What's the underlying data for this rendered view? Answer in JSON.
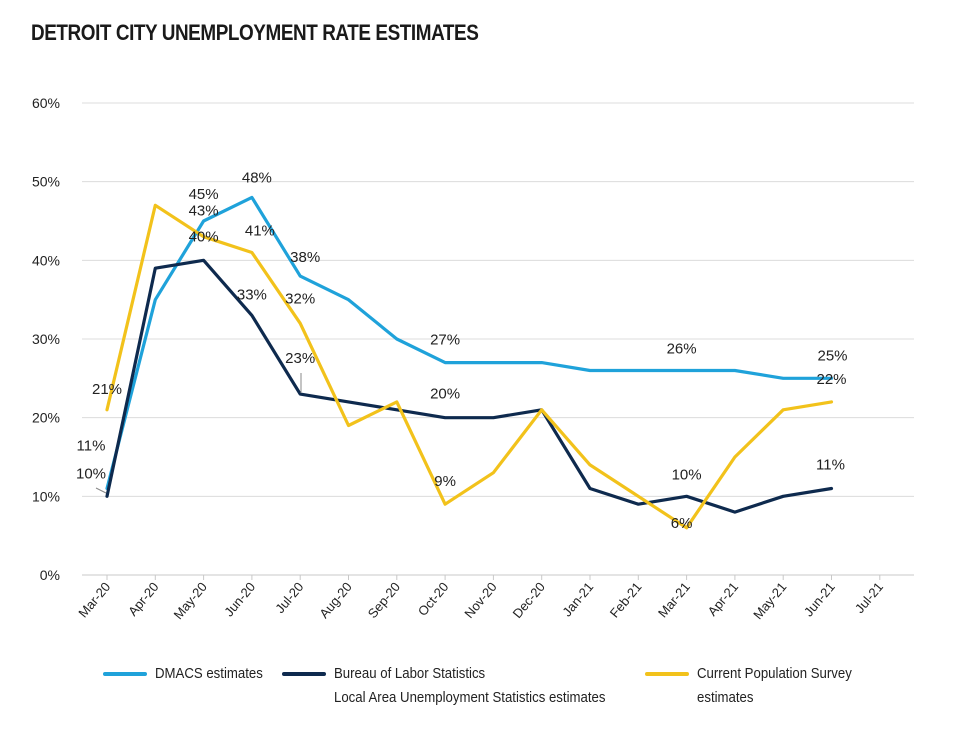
{
  "chart_data": {
    "type": "line",
    "title": "DETROIT CITY UNEMPLOYMENT RATE ESTIMATES",
    "xlabel": "",
    "ylabel": "",
    "ylim": [
      0,
      60
    ],
    "yticks": [
      0,
      10,
      20,
      30,
      40,
      50,
      60
    ],
    "ytick_labels": [
      "0%",
      "10%",
      "20%",
      "30%",
      "40%",
      "50%",
      "60%"
    ],
    "grid": true,
    "legend_position": "bottom",
    "categories": [
      "Mar-20",
      "Apr-20",
      "May-20",
      "Jun-20",
      "Jul-20",
      "Aug-20",
      "Sep-20",
      "Oct-20",
      "Nov-20",
      "Dec-20",
      "Jan-21",
      "Feb-21",
      "Mar-21",
      "Apr-21",
      "May-21",
      "Jun-21",
      "Jul-21"
    ],
    "series": [
      {
        "name": "DMACS estimates",
        "color": "#1FA2DA",
        "values": [
          11,
          35,
          45,
          48,
          38,
          35,
          30,
          27,
          27,
          27,
          26,
          26,
          26,
          26,
          25,
          25,
          null
        ],
        "labels": {
          "0": "11%",
          "2": "45%",
          "3": "48%",
          "4": "38%",
          "7": "27%",
          "12": "26%",
          "15": "25%"
        }
      },
      {
        "name": "Bureau of Labor Statistics Local Area Unemployment Statistics estimates",
        "legend_lines": [
          "Bureau of Labor Statistics",
          "Local Area Unemployment Statistics estimates"
        ],
        "color": "#0E2A4E",
        "values": [
          10,
          39,
          40,
          33,
          23,
          22,
          21,
          20,
          20,
          21,
          11,
          9,
          10,
          8,
          10,
          11,
          null
        ],
        "labels": {
          "0": "10%",
          "2": "40%",
          "3": "33%",
          "4": "23%",
          "7": "20%",
          "12": "10%",
          "15": "11%"
        }
      },
      {
        "name": "Current Population Survey estimates",
        "legend_lines": [
          "Current Population Survey",
          "estimates"
        ],
        "color": "#F2C21B",
        "values": [
          21,
          47,
          43,
          41,
          32,
          19,
          22,
          9,
          13,
          21,
          14,
          10,
          6,
          15,
          21,
          22,
          null
        ],
        "labels": {
          "0": "21%",
          "2": "43%",
          "3": "41%",
          "4": "32%",
          "7": "9%",
          "12": "6%",
          "15": "22%"
        }
      }
    ]
  }
}
